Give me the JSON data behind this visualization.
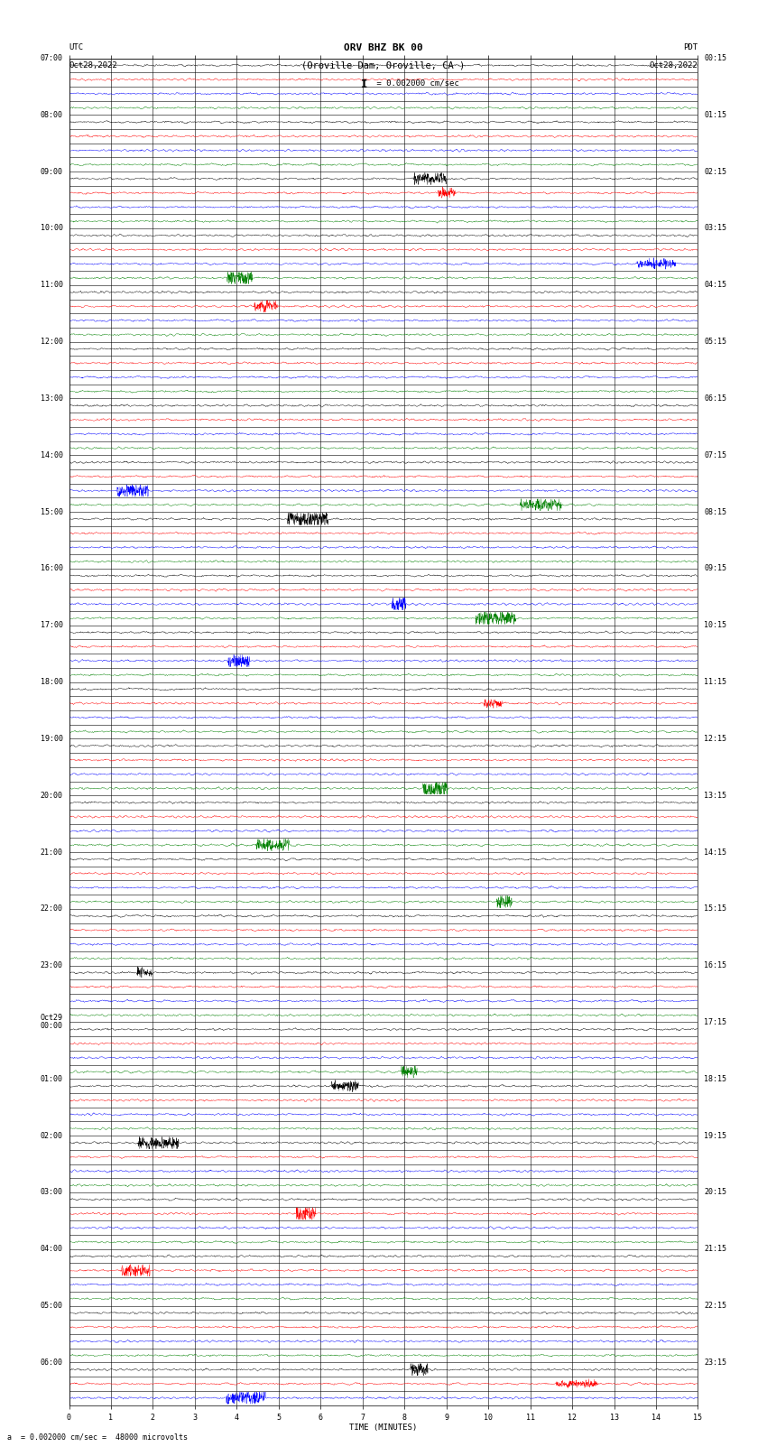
{
  "title_line1": "ORV BHZ BK 00",
  "title_line2": "(Oroville Dam, Oroville, CA )",
  "scale_label": " = 0.002000 cm/sec",
  "bottom_label": "a  = 0.002000 cm/sec =  48000 microvolts",
  "xlabel": "TIME (MINUTES)",
  "utc_label": "UTC",
  "pdt_label": "PDT",
  "date_left": "Oct28,2022",
  "date_right": "Oct28,2022",
  "left_times": [
    "07:00",
    "",
    "",
    "",
    "08:00",
    "",
    "",
    "",
    "09:00",
    "",
    "",
    "",
    "10:00",
    "",
    "",
    "",
    "11:00",
    "",
    "",
    "",
    "12:00",
    "",
    "",
    "",
    "13:00",
    "",
    "",
    "",
    "14:00",
    "",
    "",
    "",
    "15:00",
    "",
    "",
    "",
    "16:00",
    "",
    "",
    "",
    "17:00",
    "",
    "",
    "",
    "18:00",
    "",
    "",
    "",
    "19:00",
    "",
    "",
    "",
    "20:00",
    "",
    "",
    "",
    "21:00",
    "",
    "",
    "",
    "22:00",
    "",
    "",
    "",
    "23:00",
    "",
    "",
    "",
    "Oct29\n00:00",
    "",
    "",
    "",
    "01:00",
    "",
    "",
    "",
    "02:00",
    "",
    "",
    "",
    "03:00",
    "",
    "",
    "",
    "04:00",
    "",
    "",
    "",
    "05:00",
    "",
    "",
    "",
    "06:00",
    "",
    ""
  ],
  "right_times": [
    "00:15",
    "",
    "",
    "",
    "01:15",
    "",
    "",
    "",
    "02:15",
    "",
    "",
    "",
    "03:15",
    "",
    "",
    "",
    "04:15",
    "",
    "",
    "",
    "05:15",
    "",
    "",
    "",
    "06:15",
    "",
    "",
    "",
    "07:15",
    "",
    "",
    "",
    "08:15",
    "",
    "",
    "",
    "09:15",
    "",
    "",
    "",
    "10:15",
    "",
    "",
    "",
    "11:15",
    "",
    "",
    "",
    "12:15",
    "",
    "",
    "",
    "13:15",
    "",
    "",
    "",
    "14:15",
    "",
    "",
    "",
    "15:15",
    "",
    "",
    "",
    "16:15",
    "",
    "",
    "",
    "17:15",
    "",
    "",
    "",
    "18:15",
    "",
    "",
    "",
    "19:15",
    "",
    "",
    "",
    "20:15",
    "",
    "",
    "",
    "21:15",
    "",
    "",
    "",
    "22:15",
    "",
    "",
    "",
    "23:15",
    "",
    ""
  ],
  "n_rows": 95,
  "n_cols_minutes": 15,
  "colors_cycle": [
    "black",
    "red",
    "blue",
    "green"
  ],
  "bg_color": "white",
  "fig_width": 8.5,
  "fig_height": 16.13,
  "dpi": 100,
  "x_ticks": [
    0,
    1,
    2,
    3,
    4,
    5,
    6,
    7,
    8,
    9,
    10,
    11,
    12,
    13,
    14,
    15
  ],
  "title_fontsize": 8,
  "label_fontsize": 6.5,
  "tick_fontsize": 6,
  "row_label_fontsize": 6
}
